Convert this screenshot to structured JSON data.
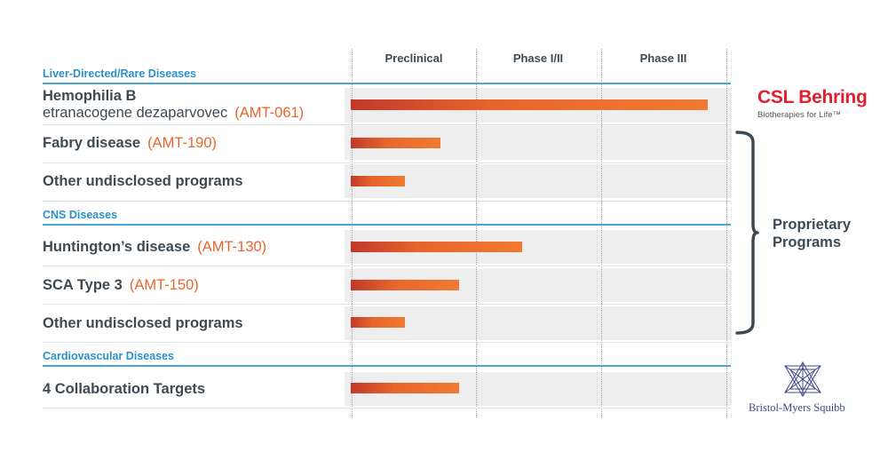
{
  "chart_data": {
    "type": "bar",
    "orientation": "horizontal",
    "title": "",
    "stages": [
      "Preclinical",
      "Phase I/II",
      "Phase III"
    ],
    "xlim": [
      0,
      3
    ],
    "grid": true,
    "sections": [
      {
        "name": "Liver-Directed/Rare Diseases",
        "programs": [
          {
            "name": "Hemophilia B",
            "subtitle": "etranacogene dezaparvovec",
            "code": "(AMT-061)",
            "progress": 2.86
          },
          {
            "name": "Fabry disease",
            "subtitle": "",
            "code": "(AMT-190)",
            "progress": 0.72
          },
          {
            "name": "Other undisclosed programs",
            "subtitle": "",
            "code": "",
            "progress": 0.43
          }
        ]
      },
      {
        "name": "CNS Diseases",
        "programs": [
          {
            "name": "Huntington’s disease",
            "subtitle": "",
            "code": "(AMT-130)",
            "progress": 1.37
          },
          {
            "name": "SCA Type 3",
            "subtitle": "",
            "code": "(AMT-150)",
            "progress": 0.87
          },
          {
            "name": "Other undisclosed programs",
            "subtitle": "",
            "code": "",
            "progress": 0.43
          }
        ]
      },
      {
        "name": "Cardiovascular Diseases",
        "programs": [
          {
            "name": "4 Collaboration Targets",
            "subtitle": "",
            "code": "",
            "progress": 0.87
          }
        ]
      }
    ]
  },
  "partners": {
    "csl_name": "CSL Behring",
    "csl_tagline": "Biotherapies for Life™",
    "bms_name": "Bristol-Myers Squibb"
  },
  "bracket": {
    "label_line1": "Proprietary",
    "label_line2": "Programs"
  },
  "colors": {
    "accent_orange": "#e8652b",
    "bar_dark_red": "#c0392b",
    "section_blue": "#2b8fc9",
    "text_dark": "#3d4a55",
    "csl_red": "#e0202e",
    "bms_blue": "#3b4a8a"
  }
}
